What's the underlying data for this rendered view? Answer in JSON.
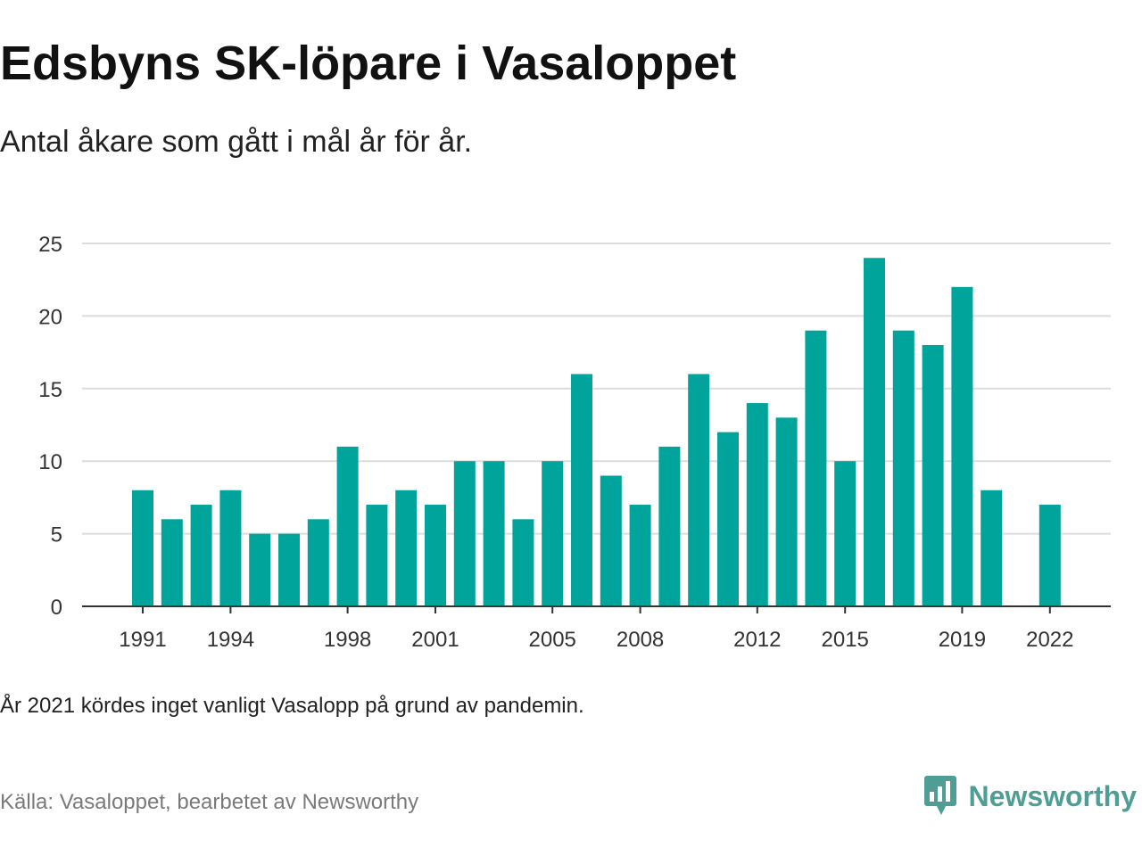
{
  "title": "Edsbyns SK-löpare i Vasaloppet",
  "subtitle": "Antal åkare som gått i mål år för år.",
  "note": "År 2021 kördes inget vanligt Vasalopp på grund av pandemin.",
  "source": "Källa: Vasaloppet, bearbetet av Newsworthy",
  "brand": {
    "name": "Newsworthy",
    "icon": "newsworthy-logo-icon",
    "color": "#4e9e96"
  },
  "chart_data": {
    "type": "bar",
    "title": "Edsbyns SK-löpare i Vasaloppet",
    "subtitle": "Antal åkare som gått i mål år för år.",
    "xlabel": "",
    "ylabel": "",
    "ylim": [
      0,
      25
    ],
    "yticks": [
      0,
      5,
      10,
      15,
      20,
      25
    ],
    "xtick_labels": [
      "1991",
      "1994",
      "1998",
      "2001",
      "2005",
      "2008",
      "2012",
      "2015",
      "2019",
      "2022"
    ],
    "grid": true,
    "bar_color": "#00a49a",
    "categories": [
      1991,
      1992,
      1993,
      1994,
      1995,
      1996,
      1997,
      1998,
      1999,
      2000,
      2001,
      2002,
      2003,
      2004,
      2005,
      2006,
      2007,
      2008,
      2009,
      2010,
      2011,
      2012,
      2013,
      2014,
      2015,
      2016,
      2017,
      2018,
      2019,
      2020,
      2021,
      2022
    ],
    "values": [
      8,
      6,
      7,
      8,
      5,
      5,
      6,
      11,
      7,
      8,
      7,
      10,
      10,
      6,
      10,
      16,
      9,
      7,
      11,
      16,
      12,
      14,
      13,
      19,
      10,
      24,
      19,
      18,
      22,
      8,
      null,
      7
    ]
  }
}
